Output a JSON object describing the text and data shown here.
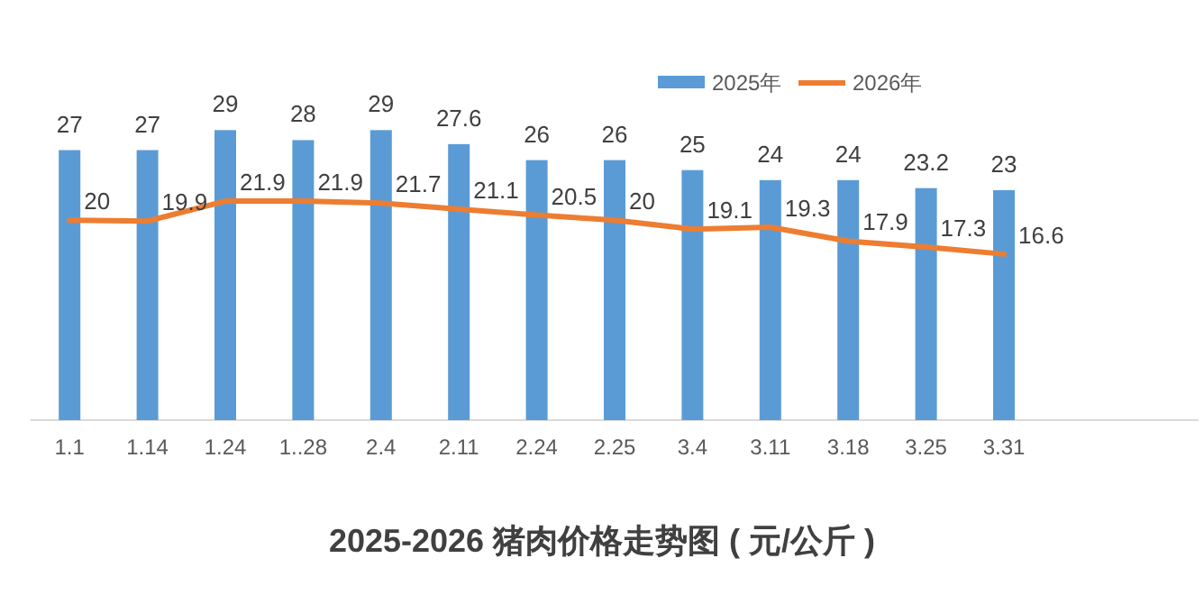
{
  "chart_data": {
    "type": "bar",
    "title": "2025-2026 猪肉价格走势图 ( 元/公斤 )",
    "categories": [
      "1.1",
      "1.14",
      "1.24",
      "1..28",
      "2.4",
      "2.11",
      "2.24",
      "2.25",
      "3.4",
      "3.11",
      "3.18",
      "3.25",
      "3.31",
      null,
      null
    ],
    "series": [
      {
        "name": "2025年",
        "color": "#5b9bd5",
        "values": [
          27,
          27,
          29,
          28,
          29,
          27.6,
          26,
          26,
          25,
          24,
          24,
          23.2,
          23,
          null,
          null
        ]
      },
      {
        "name": "2026年",
        "type": "line",
        "color": "#ed7d31",
        "values": [
          20,
          19.9,
          21.9,
          21.9,
          21.7,
          21.1,
          20.5,
          20,
          19.1,
          19.3,
          17.9,
          17.3,
          16.6,
          null,
          null
        ]
      }
    ],
    "data_labels": true,
    "legend": "top",
    "grid": false,
    "marker": "none",
    "line_style": "solid"
  }
}
